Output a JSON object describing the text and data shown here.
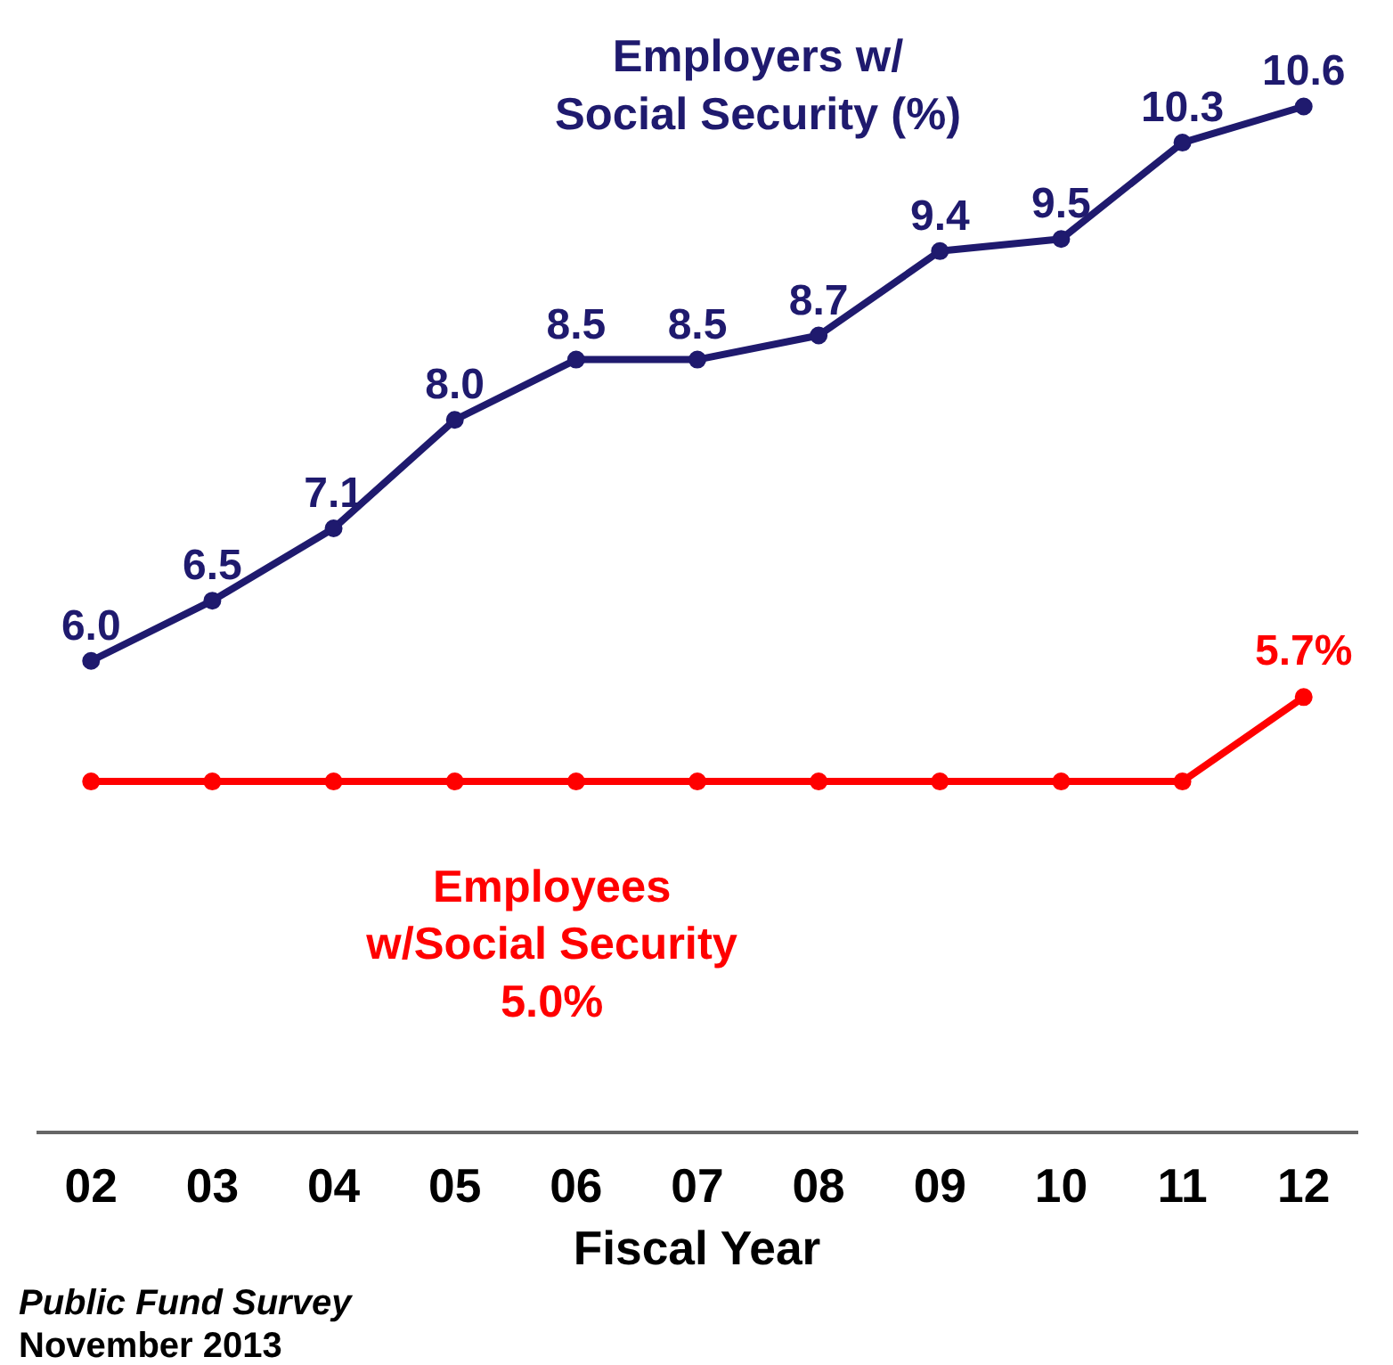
{
  "chart_data": {
    "type": "line",
    "xlabel": "Fiscal Year",
    "categories": [
      "02",
      "03",
      "04",
      "05",
      "06",
      "07",
      "08",
      "09",
      "10",
      "11",
      "12"
    ],
    "series": [
      {
        "name": "Employers w/\nSocial Security (%)",
        "color": "#1f1a6e",
        "values": [
          6.0,
          6.5,
          7.1,
          8.0,
          8.5,
          8.5,
          8.7,
          9.4,
          9.5,
          10.3,
          10.6
        ],
        "value_labels": [
          "6.0",
          "6.5",
          "7.1",
          "8.0",
          "8.5",
          "8.5",
          "8.7",
          "9.4",
          "9.5",
          "10.3",
          "10.6"
        ]
      },
      {
        "name": "Employees\nw/Social Security",
        "color": "#ff0000",
        "values": [
          5.0,
          5.0,
          5.0,
          5.0,
          5.0,
          5.0,
          5.0,
          5.0,
          5.0,
          5.0,
          5.7
        ],
        "value_labels": [
          null,
          null,
          null,
          null,
          null,
          null,
          null,
          null,
          null,
          null,
          "5.7%"
        ]
      }
    ],
    "marker": "circle",
    "line_style": "solid",
    "grid": false,
    "legend": false,
    "tick_labels": "x",
    "annotations": [
      "5.0%",
      "Public Fund Survey",
      "November 2013"
    ]
  }
}
